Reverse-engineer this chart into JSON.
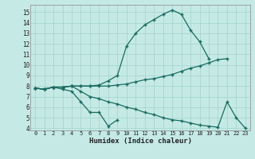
{
  "xlabel": "Humidex (Indice chaleur)",
  "bg_color": "#c5eae6",
  "grid_color": "#a8d5d0",
  "line_color": "#1a6b60",
  "xlim": [
    -0.5,
    23.5
  ],
  "ylim": [
    3.8,
    15.7
  ],
  "xticks": [
    0,
    1,
    2,
    3,
    4,
    5,
    6,
    7,
    8,
    9,
    10,
    11,
    12,
    13,
    14,
    15,
    16,
    17,
    18,
    19,
    20,
    21,
    22,
    23
  ],
  "yticks": [
    4,
    5,
    6,
    7,
    8,
    9,
    10,
    11,
    12,
    13,
    14,
    15
  ],
  "line1_x": [
    0,
    1,
    2,
    3,
    4,
    5,
    6,
    7,
    8,
    9
  ],
  "line1_y": [
    7.8,
    7.7,
    7.9,
    7.7,
    7.5,
    6.5,
    5.5,
    5.5,
    4.2,
    4.8
  ],
  "line2_x": [
    0,
    1,
    2,
    3,
    4,
    5,
    6,
    7,
    8,
    9,
    10,
    11,
    12,
    13,
    14,
    15,
    16,
    17,
    18,
    19
  ],
  "line2_y": [
    7.8,
    7.7,
    7.9,
    7.9,
    8.0,
    8.0,
    8.0,
    8.1,
    8.5,
    9.0,
    11.8,
    13.0,
    13.8,
    14.3,
    14.8,
    15.2,
    14.8,
    13.3,
    12.2,
    10.6
  ],
  "line3_x": [
    0,
    1,
    2,
    3,
    4,
    5,
    6,
    7,
    8,
    9,
    10,
    11,
    12,
    13,
    14,
    15,
    16,
    17,
    18,
    19,
    20,
    21
  ],
  "line3_y": [
    7.8,
    7.7,
    7.9,
    7.9,
    8.0,
    8.0,
    8.0,
    8.0,
    8.0,
    8.1,
    8.2,
    8.4,
    8.6,
    8.7,
    8.9,
    9.1,
    9.4,
    9.7,
    9.9,
    10.2,
    10.5,
    10.6
  ],
  "line4_x": [
    0,
    1,
    2,
    3,
    4,
    5,
    6,
    7,
    8,
    9,
    10,
    11,
    12,
    13,
    14,
    15,
    16,
    17,
    18,
    19,
    20,
    21,
    22,
    23
  ],
  "line4_y": [
    7.8,
    7.7,
    7.9,
    7.9,
    8.0,
    7.5,
    7.0,
    6.8,
    6.5,
    6.3,
    6.0,
    5.8,
    5.5,
    5.3,
    5.0,
    4.8,
    4.7,
    4.5,
    4.3,
    4.2,
    4.1,
    6.5,
    5.0,
    4.0
  ]
}
